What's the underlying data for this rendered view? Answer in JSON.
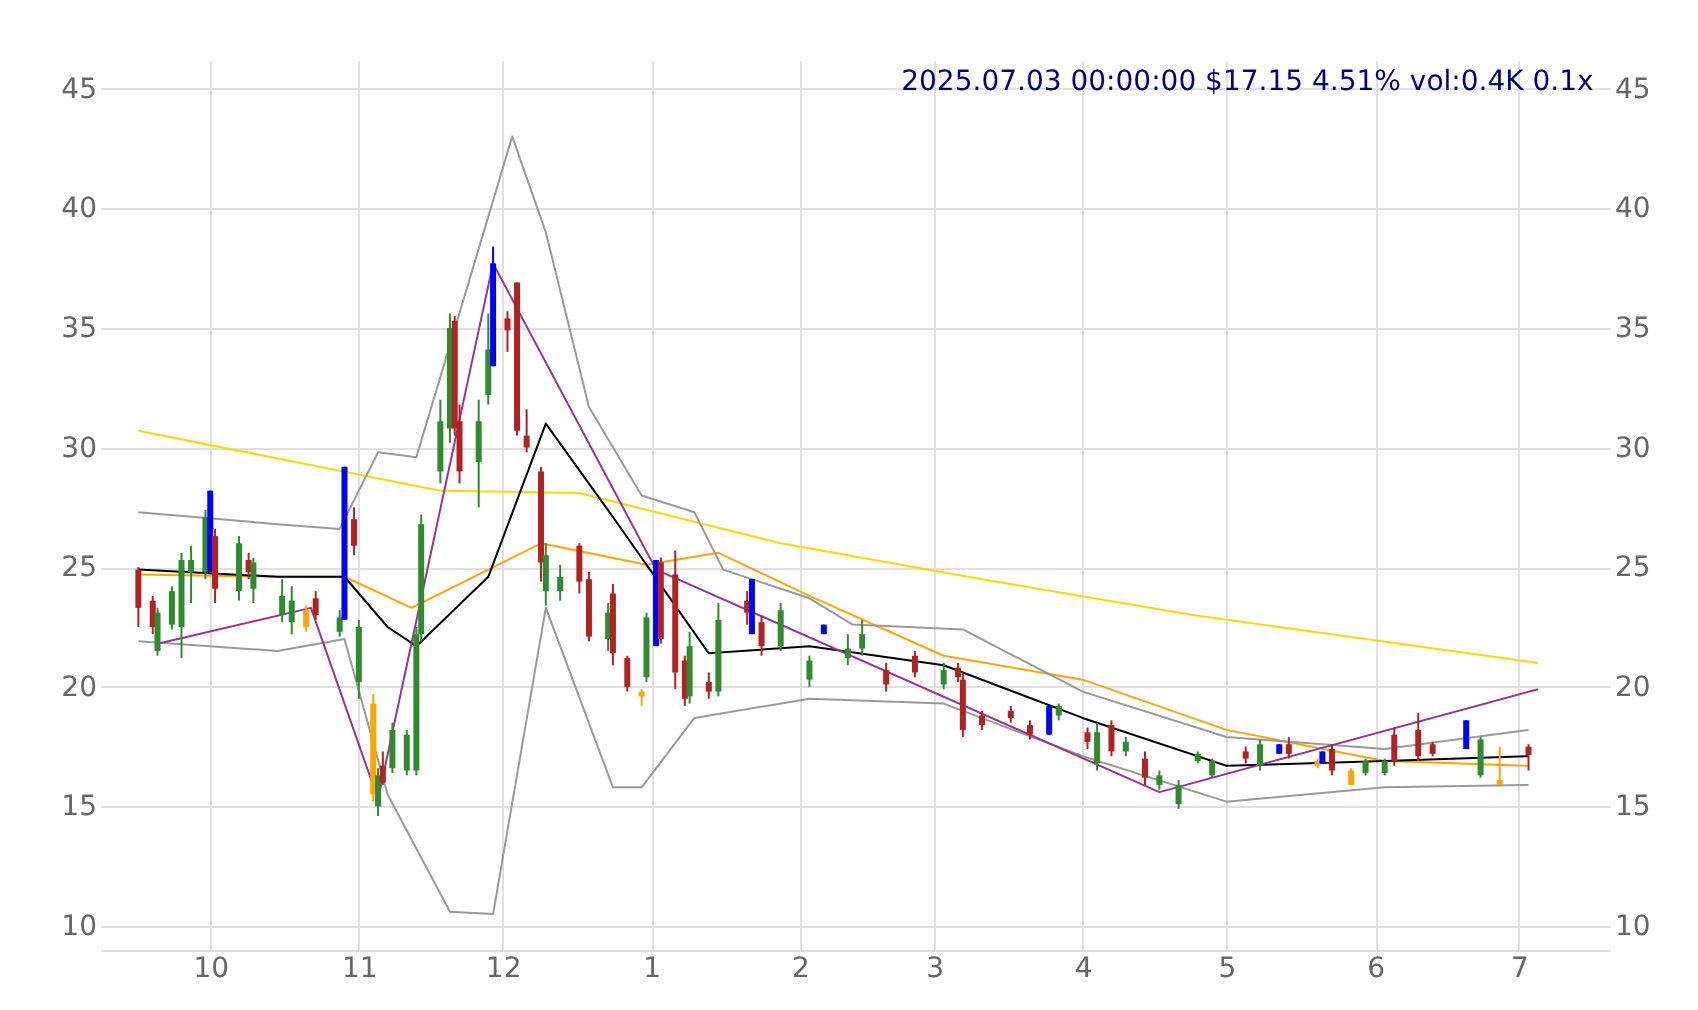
{
  "chart_data": {
    "type": "candlestick",
    "title": "2025.07.03 00:00:00 $17.15 4.51% vol:0.4K 0.1x",
    "x": [
      "2024-09-16",
      "2024-09-19",
      "2024-09-20",
      "2024-09-23",
      "2024-09-25",
      "2024-09-27",
      "2024-09-30",
      "2024-10-01",
      "2024-10-02",
      "2024-10-07",
      "2024-10-09",
      "2024-10-10",
      "2024-10-16",
      "2024-10-18",
      "2024-10-21",
      "2024-10-23",
      "2024-10-28",
      "2024-10-29",
      "2024-10-31",
      "2024-11-01",
      "2024-11-04",
      "2024-11-05",
      "2024-11-06",
      "2024-11-08",
      "2024-11-11",
      "2024-11-13",
      "2024-11-14",
      "2024-11-18",
      "2024-11-20",
      "2024-11-21",
      "2024-11-22",
      "2024-11-26",
      "2024-11-28",
      "2024-11-29",
      "2024-12-02",
      "2024-12-04",
      "2024-12-06",
      "2024-12-09",
      "2024-12-10",
      "2024-12-13",
      "2024-12-17",
      "2024-12-19",
      "2024-12-23",
      "2024-12-24",
      "2024-12-27",
      "2024-12-30",
      "2024-12-31",
      "2025-01-02",
      "2025-01-03",
      "2025-01-06",
      "2025-01-08",
      "2025-01-09",
      "2025-01-13",
      "2025-01-15",
      "2025-01-21",
      "2025-01-22",
      "2025-01-24",
      "2025-01-28",
      "2025-02-03",
      "2025-02-06",
      "2025-02-11",
      "2025-02-14",
      "2025-02-19",
      "2025-02-25",
      "2025-03-03",
      "2025-03-06",
      "2025-03-07",
      "2025-03-11",
      "2025-03-17",
      "2025-03-21",
      "2025-03-25",
      "2025-03-27",
      "2025-04-02",
      "2025-04-04",
      "2025-04-07",
      "2025-04-10",
      "2025-04-14",
      "2025-04-17",
      "2025-04-21",
      "2025-04-25",
      "2025-04-28",
      "2025-05-05",
      "2025-05-08",
      "2025-05-12",
      "2025-05-14",
      "2025-05-20",
      "2025-05-21",
      "2025-05-23",
      "2025-05-27",
      "2025-05-30",
      "2025-06-03",
      "2025-06-05",
      "2025-06-10",
      "2025-06-13",
      "2025-06-20",
      "2025-06-23",
      "2025-06-27",
      "2025-07-03"
    ],
    "ohlc": [
      [
        24.9,
        25.0,
        22.5,
        23.3
      ],
      [
        23.6,
        23.8,
        22.2,
        22.5
      ],
      [
        21.5,
        23.3,
        21.3,
        23.1
      ],
      [
        22.6,
        24.2,
        22.4,
        24.0
      ],
      [
        22.5,
        25.6,
        21.2,
        25.3
      ],
      [
        24.8,
        25.9,
        23.5,
        25.3
      ],
      [
        24.8,
        27.4,
        24.5,
        27.1
      ],
      [
        24.8,
        28.2,
        24.8,
        28.2
      ],
      [
        26.3,
        26.6,
        23.5,
        24.1
      ],
      [
        24.0,
        26.3,
        23.6,
        26.0
      ],
      [
        25.3,
        25.6,
        24.5,
        24.8
      ],
      [
        24.1,
        25.4,
        23.5,
        25.2
      ],
      [
        23.0,
        24.5,
        22.7,
        23.8
      ],
      [
        22.7,
        24.2,
        22.2,
        23.6
      ],
      [
        22.5,
        23.4,
        22.3,
        23.2
      ],
      [
        23.7,
        24.0,
        22.8,
        23.0
      ],
      [
        22.3,
        23.2,
        22.1,
        22.9
      ],
      [
        22.8,
        29.2,
        22.8,
        29.2
      ],
      [
        27.0,
        27.5,
        25.5,
        25.9
      ],
      [
        20.2,
        22.8,
        19.5,
        22.5
      ],
      [
        19.3,
        19.7,
        15.2,
        15.5
      ],
      [
        15.0,
        16.6,
        14.6,
        16.3
      ],
      [
        16.7,
        17.3,
        15.9,
        16.0
      ],
      [
        16.6,
        18.5,
        16.4,
        18.2
      ],
      [
        16.5,
        18.2,
        16.3,
        18.0
      ],
      [
        16.5,
        22.5,
        16.3,
        22.2
      ],
      [
        22.2,
        27.2,
        21.9,
        26.8
      ],
      [
        29.0,
        32.0,
        28.5,
        31.1
      ],
      [
        30.8,
        35.6,
        30.2,
        35.0
      ],
      [
        35.3,
        35.5,
        30.5,
        30.8
      ],
      [
        31.1,
        31.8,
        28.5,
        29.0
      ],
      [
        29.4,
        32.0,
        27.5,
        31.1
      ],
      [
        32.2,
        35.6,
        31.8,
        34.1
      ],
      [
        33.4,
        38.4,
        33.4,
        37.7
      ],
      [
        35.4,
        35.7,
        34.0,
        34.9
      ],
      [
        36.9,
        36.9,
        30.5,
        30.7
      ],
      [
        30.5,
        31.6,
        29.8,
        30.0
      ],
      [
        29.0,
        29.2,
        24.4,
        25.2
      ],
      [
        24.0,
        26.0,
        23.4,
        25.5
      ],
      [
        24.0,
        25.1,
        23.6,
        24.6
      ],
      [
        25.9,
        26.0,
        23.9,
        24.4
      ],
      [
        24.5,
        24.8,
        21.9,
        22.1
      ],
      [
        22.0,
        23.5,
        21.5,
        23.1
      ],
      [
        23.9,
        24.3,
        20.9,
        21.4
      ],
      [
        21.2,
        21.3,
        19.8,
        20.0
      ],
      [
        19.6,
        19.9,
        19.2,
        19.8
      ],
      [
        20.4,
        23.1,
        20.2,
        22.9
      ],
      [
        21.7,
        25.3,
        21.7,
        25.3
      ],
      [
        25.2,
        25.4,
        21.8,
        22.0
      ],
      [
        24.7,
        25.7,
        19.9,
        20.6
      ],
      [
        21.1,
        21.3,
        19.2,
        19.5
      ],
      [
        19.6,
        22.3,
        19.3,
        21.7
      ],
      [
        20.2,
        20.6,
        19.5,
        19.8
      ],
      [
        19.8,
        23.5,
        19.6,
        22.8
      ],
      [
        23.6,
        24.0,
        22.6,
        23.1
      ],
      [
        22.2,
        24.5,
        22.2,
        24.5
      ],
      [
        22.7,
        23.0,
        21.3,
        21.7
      ],
      [
        21.7,
        23.5,
        21.5,
        23.2
      ],
      [
        20.3,
        21.3,
        20.0,
        21.1
      ],
      [
        22.2,
        22.6,
        22.2,
        22.6
      ],
      [
        21.2,
        22.2,
        20.9,
        21.6
      ],
      [
        21.6,
        22.8,
        21.3,
        22.2
      ],
      [
        20.7,
        21.0,
        19.8,
        20.1
      ],
      [
        21.3,
        21.5,
        20.4,
        20.6
      ],
      [
        20.1,
        21.0,
        19.9,
        20.7
      ],
      [
        20.8,
        21.0,
        20.2,
        20.4
      ],
      [
        20.3,
        20.6,
        17.9,
        18.2
      ],
      [
        18.8,
        19.0,
        18.2,
        18.4
      ],
      [
        19.0,
        19.2,
        18.5,
        18.7
      ],
      [
        18.4,
        18.6,
        17.8,
        18.0
      ],
      [
        18.0,
        19.2,
        18.0,
        19.2
      ],
      [
        18.8,
        19.3,
        18.6,
        19.2
      ],
      [
        18.1,
        18.3,
        17.4,
        17.7
      ],
      [
        16.8,
        18.5,
        16.5,
        18.1
      ],
      [
        18.4,
        18.6,
        17.1,
        17.3
      ],
      [
        17.3,
        17.9,
        17.1,
        17.7
      ],
      [
        17.0,
        17.3,
        15.9,
        16.2
      ],
      [
        15.9,
        16.5,
        15.7,
        16.3
      ],
      [
        15.1,
        16.1,
        14.9,
        15.9
      ],
      [
        16.9,
        17.3,
        16.8,
        17.2
      ],
      [
        16.3,
        17.0,
        16.2,
        16.9
      ],
      [
        17.3,
        17.5,
        16.8,
        17.0
      ],
      [
        16.7,
        17.8,
        16.5,
        17.6
      ],
      [
        17.2,
        17.6,
        17.2,
        17.6
      ],
      [
        17.6,
        17.9,
        17.0,
        17.2
      ],
      [
        16.9,
        17.0,
        16.6,
        16.7
      ],
      [
        16.8,
        17.3,
        16.8,
        17.3
      ],
      [
        17.4,
        17.6,
        16.3,
        16.5
      ],
      [
        16.5,
        16.6,
        15.9,
        15.9
      ],
      [
        16.4,
        17.0,
        16.3,
        16.9
      ],
      [
        16.4,
        17.0,
        16.3,
        16.9
      ],
      [
        18.0,
        18.3,
        16.7,
        16.9
      ],
      [
        18.2,
        18.9,
        16.9,
        17.1
      ],
      [
        17.6,
        17.7,
        17.1,
        17.2
      ],
      [
        17.4,
        18.6,
        17.4,
        18.6
      ],
      [
        16.3,
        17.9,
        16.2,
        17.8
      ],
      [
        16.1,
        17.5,
        15.9,
        15.9
      ],
      [
        17.5,
        17.6,
        16.5,
        17.15
      ]
    ],
    "colors": [
      "#b22222",
      "#b22222",
      "#2e8b2e",
      "#2e8b2e",
      "#2e8b2e",
      "#2e8b2e",
      "#2e8b2e",
      "#0000ff",
      "#b22222",
      "#2e8b2e",
      "#b22222",
      "#2e8b2e",
      "#2e8b2e",
      "#2e8b2e",
      "#ffa500",
      "#b22222",
      "#2e8b2e",
      "#0000ff",
      "#b22222",
      "#2e8b2e",
      "#ffa500",
      "#2e8b2e",
      "#b22222",
      "#2e8b2e",
      "#2e8b2e",
      "#2e8b2e",
      "#2e8b2e",
      "#2e8b2e",
      "#2e8b2e",
      "#b22222",
      "#b22222",
      "#2e8b2e",
      "#2e8b2e",
      "#0000ff",
      "#b22222",
      "#b22222",
      "#b22222",
      "#b22222",
      "#2e8b2e",
      "#2e8b2e",
      "#b22222",
      "#b22222",
      "#2e8b2e",
      "#b22222",
      "#b22222",
      "#ffa500",
      "#2e8b2e",
      "#0000ff",
      "#b22222",
      "#b22222",
      "#b22222",
      "#2e8b2e",
      "#b22222",
      "#2e8b2e",
      "#b22222",
      "#0000ff",
      "#b22222",
      "#2e8b2e",
      "#2e8b2e",
      "#0000ff",
      "#2e8b2e",
      "#2e8b2e",
      "#b22222",
      "#b22222",
      "#2e8b2e",
      "#b22222",
      "#b22222",
      "#b22222",
      "#b22222",
      "#b22222",
      "#0000ff",
      "#2e8b2e",
      "#b22222",
      "#2e8b2e",
      "#b22222",
      "#2e8b2e",
      "#b22222",
      "#2e8b2e",
      "#2e8b2e",
      "#2e8b2e",
      "#2e8b2e",
      "#b22222",
      "#2e8b2e",
      "#0000ff",
      "#b22222",
      "#ffa500",
      "#0000ff",
      "#b22222",
      "#ffa500",
      "#2e8b2e",
      "#2e8b2e",
      "#b22222",
      "#b22222",
      "#b22222",
      "#0000ff",
      "#2e8b2e",
      "#ffa500",
      "#b22222"
    ],
    "series": [
      {
        "type": "line",
        "color": "#ffd700",
        "x": [
          "2024-09-16",
          "2024-11-18",
          "2024-12-17",
          "2025-01-28",
          "2025-03-11",
          "2025-04-24",
          "2025-07-05"
        ],
        "values": [
          30.7,
          28.2,
          28.1,
          26.0,
          24.5,
          23.0,
          21.0
        ]
      },
      {
        "type": "line",
        "color": "#ffa500",
        "x": [
          "2024-09-16",
          "2024-10-15",
          "2024-10-29",
          "2024-11-12",
          "2024-12-09",
          "2024-12-31",
          "2025-01-15",
          "2025-02-03",
          "2025-03-03",
          "2025-04-01",
          "2025-05-01",
          "2025-06-03",
          "2025-07-03"
        ],
        "values": [
          24.7,
          24.6,
          24.6,
          23.3,
          26.0,
          25.1,
          25.6,
          23.8,
          21.3,
          20.3,
          18.2,
          16.9,
          16.7
        ]
      },
      {
        "type": "line",
        "color": "#000000",
        "x": [
          "2024-09-16",
          "2024-10-15",
          "2024-10-29",
          "2024-11-07",
          "2024-11-13",
          "2024-11-28",
          "2024-12-10",
          "2024-12-24",
          "2025-01-13",
          "2025-02-03",
          "2025-03-03",
          "2025-04-01",
          "2025-05-01",
          "2025-06-03",
          "2025-07-03"
        ],
        "values": [
          24.9,
          24.6,
          24.6,
          22.5,
          21.7,
          24.6,
          31.0,
          27.1,
          21.4,
          21.7,
          20.9,
          18.7,
          16.7,
          16.9,
          17.1
        ]
      },
      {
        "type": "line",
        "color": "#999999",
        "x": [
          "2024-09-16",
          "2024-10-15",
          "2024-10-28",
          "2024-11-05",
          "2024-11-13",
          "2024-12-03",
          "2024-12-10",
          "2024-12-19",
          "2024-12-30",
          "2025-01-10",
          "2025-01-16",
          "2025-02-03",
          "2025-02-12",
          "2025-03-07",
          "2025-04-01",
          "2025-05-01",
          "2025-06-03",
          "2025-07-03"
        ],
        "values": [
          27.3,
          26.8,
          26.6,
          29.8,
          29.6,
          43.0,
          39.0,
          31.7,
          28.0,
          27.3,
          24.9,
          23.7,
          22.6,
          22.4,
          19.8,
          17.9,
          17.4,
          18.2
        ]
      },
      {
        "type": "line",
        "color": "#999999",
        "x": [
          "2024-09-16",
          "2024-10-15",
          "2024-10-29",
          "2024-11-07",
          "2024-11-20",
          "2024-11-29",
          "2024-12-10",
          "2024-12-24",
          "2024-12-30",
          "2025-01-10",
          "2025-02-03",
          "2025-03-03",
          "2025-04-01",
          "2025-05-01",
          "2025-06-03",
          "2025-07-03"
        ],
        "values": [
          21.9,
          21.5,
          22.0,
          15.5,
          10.6,
          10.5,
          23.3,
          15.8,
          15.8,
          18.7,
          19.5,
          19.3,
          17.1,
          15.2,
          15.8,
          15.9
        ]
      },
      {
        "type": "line",
        "color": "#993399",
        "x": [
          "2024-09-20",
          "2024-10-22",
          "2024-11-05",
          "2024-11-29",
          "2025-01-02",
          "2025-04-17",
          "2025-07-05"
        ],
        "values": [
          21.8,
          23.3,
          15.3,
          37.7,
          24.9,
          15.6,
          19.9
        ]
      }
    ],
    "xlim": [
      "2024-09-08",
      "2025-07-20"
    ],
    "xticks": [
      {
        "value": "2024-10-01",
        "label": "10"
      },
      {
        "value": "2024-11-01",
        "label": "11"
      },
      {
        "value": "2024-12-01",
        "label": "12"
      },
      {
        "value": "2025-01-01",
        "label": "1"
      },
      {
        "value": "2025-02-01",
        "label": "2"
      },
      {
        "value": "2025-03-01",
        "label": "3"
      },
      {
        "value": "2025-04-01",
        "label": "4"
      },
      {
        "value": "2025-05-01",
        "label": "5"
      },
      {
        "value": "2025-06-01",
        "label": "6"
      },
      {
        "value": "2025-07-01",
        "label": "7"
      }
    ],
    "ylim": [
      9.0,
      46.2
    ],
    "yticks": [
      10,
      15,
      20,
      25,
      30,
      35,
      40,
      45
    ],
    "y2lim": [
      9.0,
      46.2
    ],
    "y2ticks": [
      10,
      15,
      20,
      25,
      30,
      35,
      40,
      45
    ],
    "grid": true
  }
}
